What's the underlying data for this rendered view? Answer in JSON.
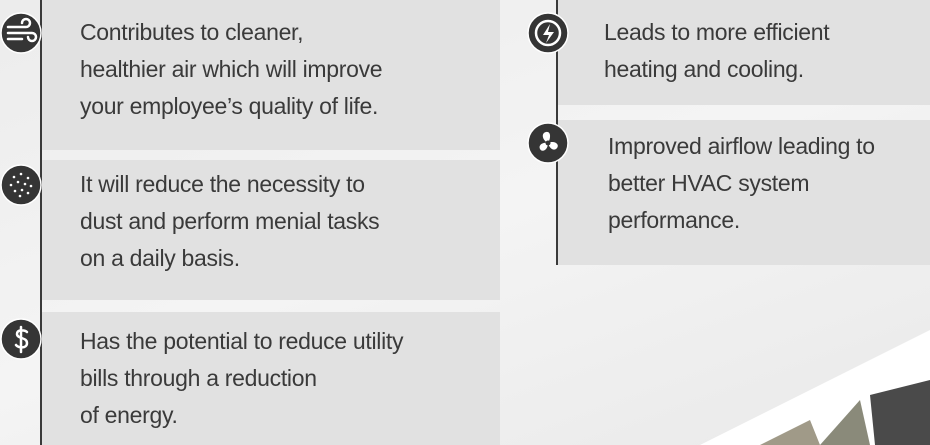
{
  "left_items": [
    {
      "lines": [
        "Contributes to cleaner,",
        "healthier air which will improve",
        "your employee’s quality of life."
      ]
    },
    {
      "lines": [
        "It will reduce the necessity to",
        "dust and perform menial tasks",
        "on a daily basis."
      ]
    },
    {
      "lines": [
        "Has the potential to reduce utility",
        "bills through a reduction",
        "of energy."
      ]
    }
  ],
  "right_items": [
    {
      "lines": [
        "Leads to more efficient",
        "heating and cooling."
      ]
    },
    {
      "lines": [
        "Improved airflow leading to",
        "better HVAC system",
        "performance."
      ]
    }
  ]
}
